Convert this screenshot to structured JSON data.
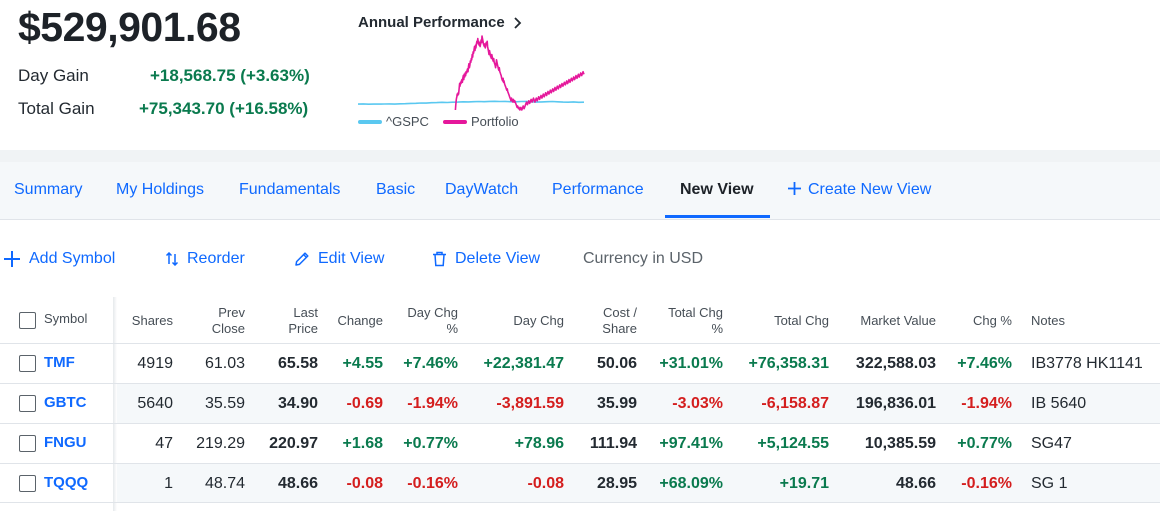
{
  "summary": {
    "total_value": "$529,901.68",
    "day_gain_label": "Day Gain",
    "day_gain_value": "+18,568.75 (+3.63%)",
    "total_gain_label": "Total Gain",
    "total_gain_value": "+75,343.70 (+16.58%)"
  },
  "performance": {
    "title": "Annual Performance",
    "legend": [
      {
        "name": "^GSPC",
        "color": "#5ac8f0"
      },
      {
        "name": "Portfolio",
        "color": "#e5189b"
      }
    ]
  },
  "chart_data": {
    "type": "line",
    "series": [
      {
        "name": "^GSPC",
        "color": "#5ac8f0",
        "values": [
          0.5,
          0.6,
          0.4,
          0.5,
          0.45,
          0.55,
          0.6,
          0.5,
          0.7,
          0.8,
          1.0,
          1.1,
          1.3,
          1.2,
          1.5,
          1.6,
          1.8,
          1.7,
          1.9,
          2.0,
          2.2,
          2.1,
          2.3,
          2.4,
          2.3,
          2.5,
          2.6,
          2.4,
          2.5,
          2.3,
          2.2,
          2.4,
          2.5,
          2.2,
          2.0,
          2.1,
          2.3,
          2.4,
          2.2,
          2.0,
          1.9,
          2.1,
          1.8,
          1.9
        ]
      },
      {
        "name": "Portfolio",
        "color": "#e5189b",
        "values": [
          null,
          null,
          null,
          null,
          null,
          null,
          null,
          null,
          null,
          null,
          null,
          null,
          null,
          null,
          null,
          null,
          null,
          null,
          null,
          null,
          -4,
          0,
          4,
          6,
          8,
          7,
          9,
          8,
          12,
          16,
          14,
          17,
          16,
          18,
          19,
          17,
          20,
          22,
          19,
          23,
          21,
          24,
          22,
          25,
          24,
          26,
          27,
          25,
          29,
          31,
          28,
          30,
          33,
          32,
          35,
          34,
          38,
          36,
          40,
          39,
          42,
          44,
          41,
          45,
          43,
          46,
          48,
          47,
          50,
          46,
          48,
          45,
          47,
          44,
          46,
          49,
          47,
          52,
          50,
          48,
          46,
          45,
          44,
          46,
          43,
          45,
          47,
          46,
          48,
          44,
          42,
          40,
          38,
          41,
          39,
          37,
          36,
          35,
          38,
          36,
          34,
          33,
          35,
          32,
          31,
          30,
          28,
          31,
          34,
          32,
          30,
          29,
          27,
          26,
          28,
          25,
          24,
          23,
          22,
          20,
          19,
          18,
          20,
          17,
          18,
          16,
          15,
          14,
          13,
          12,
          11,
          12,
          10,
          9,
          8,
          7,
          6,
          5,
          4,
          3,
          5,
          4,
          3,
          2,
          4,
          3,
          2,
          3,
          2,
          1,
          0,
          -1,
          -2,
          -1,
          -2,
          -3,
          -2,
          -3,
          -4,
          -3,
          -2,
          -3,
          -4,
          -3,
          -2,
          -1,
          -2,
          -3,
          -2,
          -1,
          0,
          1,
          2,
          1,
          0,
          1,
          2,
          3,
          2,
          1,
          2,
          3,
          4,
          3,
          2,
          3,
          4,
          5,
          4,
          3,
          2,
          3,
          4,
          5,
          4,
          3,
          4,
          5,
          6,
          5,
          4,
          5,
          6,
          7,
          6,
          5,
          6,
          7,
          8,
          7,
          6,
          7,
          8,
          9,
          8,
          7,
          8,
          9,
          10,
          9,
          8,
          9,
          10,
          11,
          10,
          9,
          10,
          11,
          12,
          11,
          10,
          11,
          12,
          13,
          12,
          11,
          12,
          13,
          14,
          13,
          12,
          13,
          14,
          15,
          14,
          13,
          14,
          15,
          16,
          15,
          14,
          15,
          16,
          17,
          16,
          15,
          16,
          17,
          18,
          17,
          16,
          17,
          18,
          19,
          18,
          17,
          18,
          19,
          20,
          19,
          18,
          19,
          20,
          21,
          20,
          19,
          20,
          21,
          22,
          21,
          20,
          21,
          22,
          23,
          22,
          21,
          22,
          23,
          24,
          23,
          22,
          23,
          24,
          25,
          24,
          23
        ]
      }
    ]
  },
  "tabs": [
    {
      "label": "Summary"
    },
    {
      "label": "My Holdings"
    },
    {
      "label": "Fundamentals"
    },
    {
      "label": "Basic"
    },
    {
      "label": "DayWatch"
    },
    {
      "label": "Performance"
    },
    {
      "label": "New View",
      "active": true
    },
    {
      "label": "Create New View"
    }
  ],
  "toolbar": {
    "add_symbol": "Add Symbol",
    "reorder": "Reorder",
    "edit_view": "Edit View",
    "delete_view": "Delete View",
    "currency": "Currency in USD"
  },
  "table": {
    "headers": {
      "symbol": "Symbol",
      "shares": "Shares",
      "prev_close": [
        "Prev",
        "Close"
      ],
      "last_price": [
        "Last",
        "Price"
      ],
      "change": "Change",
      "day_chg_pct": [
        "Day Chg",
        "%"
      ],
      "day_chg": "Day Chg",
      "cost_share": [
        "Cost /",
        "Share"
      ],
      "total_chg_pct": [
        "Total Chg",
        "%"
      ],
      "total_chg": "Total Chg",
      "market_value": "Market Value",
      "chg_pct": "Chg %",
      "notes": "Notes"
    },
    "rows": [
      {
        "symbol": "TMF",
        "shares": "4919",
        "prev_close": "61.03",
        "last_price": "65.58",
        "change": "+4.55",
        "day_chg_pct": "+7.46%",
        "day_chg": "+22,381.47",
        "cost_share": "50.06",
        "total_chg_pct": "+31.01%",
        "total_chg": "+76,358.31",
        "market_value": "322,588.03",
        "chg_pct": "+7.46%",
        "notes": "IB3778 HK1141"
      },
      {
        "symbol": "GBTC",
        "shares": "5640",
        "prev_close": "35.59",
        "last_price": "34.90",
        "change": "-0.69",
        "day_chg_pct": "-1.94%",
        "day_chg": "-3,891.59",
        "cost_share": "35.99",
        "total_chg_pct": "-3.03%",
        "total_chg": "-6,158.87",
        "market_value": "196,836.01",
        "chg_pct": "-1.94%",
        "notes": "IB 5640"
      },
      {
        "symbol": "FNGU",
        "shares": "47",
        "prev_close": "219.29",
        "last_price": "220.97",
        "change": "+1.68",
        "day_chg_pct": "+0.77%",
        "day_chg": "+78.96",
        "cost_share": "111.94",
        "total_chg_pct": "+97.41%",
        "total_chg": "+5,124.55",
        "market_value": "10,385.59",
        "chg_pct": "+0.77%",
        "notes": "SG47"
      },
      {
        "symbol": "TQQQ",
        "shares": "1",
        "prev_close": "48.74",
        "last_price": "48.66",
        "change": "-0.08",
        "day_chg_pct": "-0.16%",
        "day_chg": "-0.08",
        "cost_share": "28.95",
        "total_chg_pct": "+68.09%",
        "total_chg": "+19.71",
        "market_value": "48.66",
        "chg_pct": "-0.16%",
        "notes": "SG 1"
      }
    ]
  }
}
